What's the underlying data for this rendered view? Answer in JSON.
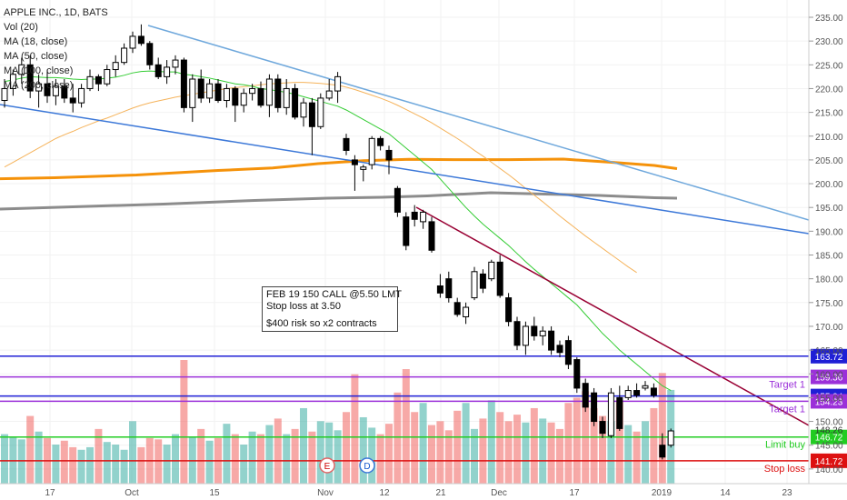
{
  "legend": {
    "title": "APPLE INC., 1D, BATS",
    "vol": "Vol (20)",
    "ma18": "MA (18, close)",
    "ma50": "MA (50, close)",
    "ma100": "MA (100, close)",
    "ma200": "MA (200, close)"
  },
  "note": {
    "line1": "FEB 19 150 CALL @5.50 LMT",
    "line2": "Stop loss at 3.50",
    "line3": "$400 risk so x2 contracts"
  },
  "events": [
    "E",
    "D"
  ],
  "chart_data": {
    "type": "candlestick",
    "title": "APPLE INC., 1D, BATS",
    "x_tick_labels": [
      "17",
      "Oct",
      "15",
      "Nov",
      "12",
      "21",
      "Dec",
      "17",
      "2019",
      "14",
      "23"
    ],
    "y_tick_labels": [
      "140.00",
      "145.00",
      "150.00",
      "155.00",
      "160.00",
      "165.00",
      "170.00",
      "175.00",
      "180.00",
      "185.00",
      "190.00",
      "195.00",
      "200.00",
      "205.00",
      "210.00",
      "215.00",
      "220.00",
      "225.00",
      "230.00",
      "235.00"
    ],
    "ylim": [
      138,
      237
    ],
    "price_levels": [
      {
        "value": 163.72,
        "label": "163.72",
        "color": "#1f1fd6",
        "annotation": ""
      },
      {
        "value": 159.36,
        "label": "159.36",
        "color": "#9b30d9",
        "annotation": "Target 1"
      },
      {
        "value": 155.34,
        "label": "155.34",
        "color": "#1f1fd6",
        "annotation": ""
      },
      {
        "value": 154.23,
        "label": "154.23",
        "color": "#9b30d9",
        "annotation": "Target 1"
      },
      {
        "value": 146.72,
        "label": "146.72",
        "color": "#22cc22",
        "annotation": "Limit buy"
      },
      {
        "value": 141.72,
        "label": "141.72",
        "color": "#dd1111",
        "annotation": "Stop loss"
      }
    ],
    "last_price": {
      "value": 148.26,
      "label": "148.26"
    },
    "candles": [
      {
        "o": 217.5,
        "h": 222.0,
        "l": 216.0,
        "c": 220.0
      },
      {
        "o": 220.0,
        "h": 224.0,
        "l": 218.5,
        "c": 223.0
      },
      {
        "o": 223.0,
        "h": 226.5,
        "l": 221.0,
        "c": 225.0
      },
      {
        "o": 225.0,
        "h": 227.0,
        "l": 218.0,
        "c": 219.5
      },
      {
        "o": 219.5,
        "h": 223.0,
        "l": 216.0,
        "c": 221.0
      },
      {
        "o": 221.0,
        "h": 224.0,
        "l": 217.0,
        "c": 218.5
      },
      {
        "o": 218.5,
        "h": 222.0,
        "l": 216.5,
        "c": 220.5
      },
      {
        "o": 220.5,
        "h": 222.0,
        "l": 217.0,
        "c": 218.0
      },
      {
        "o": 218.0,
        "h": 221.0,
        "l": 215.0,
        "c": 217.0
      },
      {
        "o": 217.0,
        "h": 221.0,
        "l": 216.0,
        "c": 220.0
      },
      {
        "o": 220.0,
        "h": 224.0,
        "l": 219.5,
        "c": 222.5
      },
      {
        "o": 222.5,
        "h": 223.0,
        "l": 219.5,
        "c": 221.0
      },
      {
        "o": 221.0,
        "h": 225.0,
        "l": 220.5,
        "c": 224.0
      },
      {
        "o": 224.0,
        "h": 227.0,
        "l": 222.5,
        "c": 225.5
      },
      {
        "o": 225.5,
        "h": 229.5,
        "l": 225.0,
        "c": 228.5
      },
      {
        "o": 228.5,
        "h": 232.0,
        "l": 227.5,
        "c": 231.0
      },
      {
        "o": 231.0,
        "h": 233.5,
        "l": 229.0,
        "c": 229.5
      },
      {
        "o": 229.5,
        "h": 230.0,
        "l": 224.0,
        "c": 225.0
      },
      {
        "o": 225.0,
        "h": 226.5,
        "l": 222.0,
        "c": 222.5
      },
      {
        "o": 222.5,
        "h": 226.0,
        "l": 221.0,
        "c": 224.5
      },
      {
        "o": 224.5,
        "h": 227.0,
        "l": 223.0,
        "c": 226.0
      },
      {
        "o": 226.0,
        "h": 226.5,
        "l": 215.0,
        "c": 216.0
      },
      {
        "o": 216.0,
        "h": 223.0,
        "l": 213.0,
        "c": 222.0
      },
      {
        "o": 222.0,
        "h": 224.0,
        "l": 217.0,
        "c": 218.0
      },
      {
        "o": 218.0,
        "h": 222.0,
        "l": 217.0,
        "c": 221.0
      },
      {
        "o": 221.0,
        "h": 222.0,
        "l": 217.0,
        "c": 217.5
      },
      {
        "o": 217.5,
        "h": 221.0,
        "l": 216.0,
        "c": 220.0
      },
      {
        "o": 220.0,
        "h": 220.5,
        "l": 213.0,
        "c": 216.5
      },
      {
        "o": 216.5,
        "h": 220.0,
        "l": 215.0,
        "c": 219.0
      },
      {
        "o": 219.0,
        "h": 221.0,
        "l": 217.5,
        "c": 220.0
      },
      {
        "o": 220.0,
        "h": 221.5,
        "l": 216.0,
        "c": 216.5
      },
      {
        "o": 216.5,
        "h": 223.0,
        "l": 214.0,
        "c": 222.0
      },
      {
        "o": 222.0,
        "h": 223.0,
        "l": 215.0,
        "c": 216.0
      },
      {
        "o": 216.0,
        "h": 222.0,
        "l": 214.5,
        "c": 220.0
      },
      {
        "o": 220.0,
        "h": 221.0,
        "l": 213.5,
        "c": 214.0
      },
      {
        "o": 214.0,
        "h": 218.0,
        "l": 212.0,
        "c": 217.0
      },
      {
        "o": 217.0,
        "h": 218.0,
        "l": 206.0,
        "c": 212.0
      },
      {
        "o": 212.0,
        "h": 219.0,
        "l": 211.5,
        "c": 218.0
      },
      {
        "o": 218.0,
        "h": 222.0,
        "l": 217.5,
        "c": 219.5
      },
      {
        "o": 219.5,
        "h": 223.5,
        "l": 217.0,
        "c": 222.5
      },
      {
        "o": 209.5,
        "h": 210.5,
        "l": 206.0,
        "c": 207.0
      },
      {
        "o": 205.0,
        "h": 206.0,
        "l": 198.5,
        "c": 204.0
      },
      {
        "o": 203.0,
        "h": 204.0,
        "l": 200.5,
        "c": 203.5
      },
      {
        "o": 204.0,
        "h": 210.0,
        "l": 203.0,
        "c": 209.5
      },
      {
        "o": 209.5,
        "h": 210.0,
        "l": 207.0,
        "c": 208.0
      },
      {
        "o": 207.0,
        "h": 208.0,
        "l": 202.0,
        "c": 205.0
      },
      {
        "o": 199.0,
        "h": 199.5,
        "l": 193.0,
        "c": 194.0
      },
      {
        "o": 193.0,
        "h": 194.0,
        "l": 186.0,
        "c": 187.0
      },
      {
        "o": 194.0,
        "h": 195.5,
        "l": 191.0,
        "c": 192.5
      },
      {
        "o": 192.0,
        "h": 194.5,
        "l": 190.5,
        "c": 194.0
      },
      {
        "o": 192.0,
        "h": 193.0,
        "l": 185.5,
        "c": 186.0
      },
      {
        "o": 178.5,
        "h": 181.0,
        "l": 176.0,
        "c": 177.0
      },
      {
        "o": 180.0,
        "h": 181.5,
        "l": 175.0,
        "c": 176.0
      },
      {
        "o": 175.0,
        "h": 176.0,
        "l": 172.0,
        "c": 172.5
      },
      {
        "o": 172.0,
        "h": 175.0,
        "l": 170.5,
        "c": 174.0
      },
      {
        "o": 176.0,
        "h": 182.5,
        "l": 175.5,
        "c": 181.5
      },
      {
        "o": 181.0,
        "h": 182.0,
        "l": 177.0,
        "c": 178.0
      },
      {
        "o": 180.0,
        "h": 184.0,
        "l": 179.5,
        "c": 183.5
      },
      {
        "o": 183.5,
        "h": 185.0,
        "l": 176.0,
        "c": 176.5
      },
      {
        "o": 176.0,
        "h": 177.0,
        "l": 170.0,
        "c": 171.0
      },
      {
        "o": 171.0,
        "h": 172.0,
        "l": 165.0,
        "c": 166.0
      },
      {
        "o": 166.0,
        "h": 171.0,
        "l": 164.0,
        "c": 170.0
      },
      {
        "o": 170.0,
        "h": 172.0,
        "l": 167.0,
        "c": 168.0
      },
      {
        "o": 168.0,
        "h": 170.0,
        "l": 166.0,
        "c": 169.0
      },
      {
        "o": 169.0,
        "h": 170.0,
        "l": 164.0,
        "c": 165.0
      },
      {
        "o": 166.0,
        "h": 167.0,
        "l": 163.5,
        "c": 164.5
      },
      {
        "o": 167.0,
        "h": 168.0,
        "l": 161.0,
        "c": 162.0
      },
      {
        "o": 163.0,
        "h": 163.5,
        "l": 156.0,
        "c": 157.0
      },
      {
        "o": 158.0,
        "h": 159.0,
        "l": 152.0,
        "c": 153.0
      },
      {
        "o": 156.0,
        "h": 157.0,
        "l": 149.0,
        "c": 150.0
      },
      {
        "o": 150.0,
        "h": 151.0,
        "l": 146.5,
        "c": 147.5
      },
      {
        "o": 147.0,
        "h": 157.0,
        "l": 146.5,
        "c": 156.0
      },
      {
        "o": 155.0,
        "h": 157.5,
        "l": 148.0,
        "c": 148.5
      },
      {
        "o": 155.0,
        "h": 157.5,
        "l": 154.5,
        "c": 156.5
      },
      {
        "o": 156.5,
        "h": 158.0,
        "l": 155.0,
        "c": 155.5
      },
      {
        "o": 157.0,
        "h": 158.5,
        "l": 156.5,
        "c": 157.5
      },
      {
        "o": 157.0,
        "h": 158.0,
        "l": 155.0,
        "c": 155.5
      },
      {
        "o": 145.0,
        "h": 147.5,
        "l": 142.0,
        "c": 142.5
      },
      {
        "o": 145.0,
        "h": 148.5,
        "l": 144.5,
        "c": 148.0
      }
    ],
    "volume": [
      38,
      36,
      34,
      52,
      40,
      35,
      30,
      33,
      28,
      26,
      28,
      42,
      32,
      30,
      26,
      48,
      28,
      35,
      34,
      30,
      38,
      95,
      36,
      42,
      33,
      35,
      46,
      38,
      30,
      40,
      38,
      45,
      50,
      38,
      42,
      58,
      40,
      48,
      47,
      41,
      55,
      84,
      51,
      43,
      38,
      46,
      70,
      88,
      55,
      62,
      45,
      48,
      41,
      56,
      62,
      42,
      50,
      64,
      55,
      48,
      53,
      47,
      58,
      50,
      47,
      42,
      62,
      66,
      71,
      58,
      52,
      48,
      64,
      45,
      40,
      48,
      58,
      85,
      72
    ],
    "ma18": [
      221.5,
      221.8,
      222.2,
      222.5,
      222.4,
      222.3,
      222.3,
      222.2,
      222.0,
      221.9,
      222.0,
      222.0,
      222.2,
      222.4,
      222.8,
      223.3,
      223.6,
      223.7,
      223.6,
      223.5,
      223.5,
      223.0,
      222.8,
      222.5,
      222.2,
      221.8,
      221.4,
      221.0,
      220.8,
      220.5,
      220.0,
      219.8,
      219.5,
      219.2,
      218.8,
      218.3,
      217.8,
      217.3,
      216.8,
      216.3,
      215.5,
      214.5,
      213.5,
      212.5,
      211.5,
      210.5,
      209.0,
      207.5,
      206.0,
      204.5,
      203.0,
      201.0,
      199.0,
      197.0,
      195.0,
      193.2,
      191.5,
      190.0,
      188.5,
      187.0,
      185.3,
      183.6,
      182.0,
      180.5,
      179.0,
      177.5,
      176.0,
      174.5,
      172.5,
      170.5,
      168.5,
      166.8,
      165.0,
      163.5,
      162.0,
      160.5,
      159.0,
      157.5,
      156.5
    ],
    "ma50": [
      203.5,
      204.5,
      205.5,
      206.5,
      207.5,
      208.5,
      209.5,
      210.3,
      211.0,
      211.8,
      212.5,
      213.2,
      213.8,
      214.5,
      215.2,
      215.9,
      216.5,
      217.0,
      217.4,
      217.8,
      218.2,
      218.5,
      218.8,
      219.1,
      219.4,
      219.7,
      220.0,
      220.2,
      220.4,
      220.6,
      220.8,
      221.0,
      221.1,
      221.2,
      221.3,
      221.3,
      221.2,
      221.1,
      220.9,
      220.7,
      220.3,
      219.8,
      219.2,
      218.6,
      218.0,
      217.3,
      216.5,
      215.6,
      214.7,
      213.8,
      212.8,
      211.7,
      210.6,
      209.5,
      208.3,
      207.0,
      205.8,
      204.5,
      203.2,
      201.9,
      200.5,
      199.0,
      197.6,
      196.2,
      194.7,
      193.2,
      191.8,
      190.4,
      189.0,
      187.7,
      186.4,
      185.1,
      183.8,
      182.5,
      181.3
    ]
  }
}
